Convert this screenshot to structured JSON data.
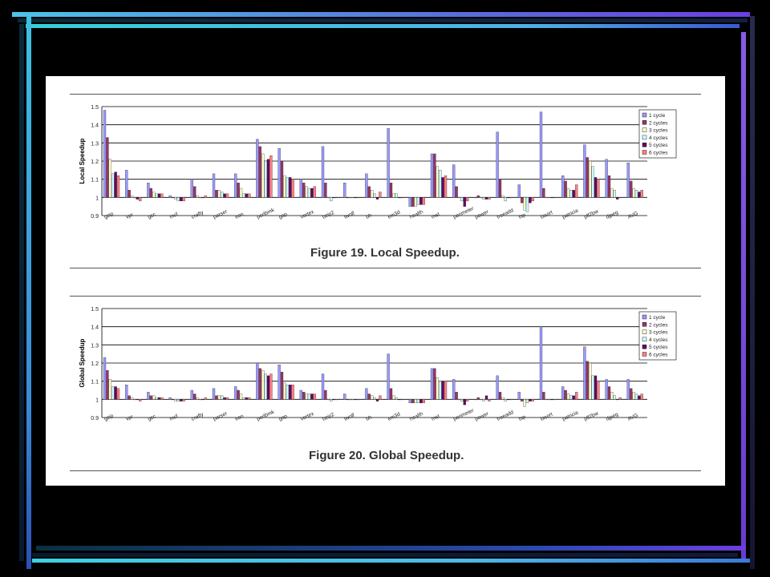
{
  "theme": {
    "background": "#000000",
    "border_light": "#4fc3e8",
    "border_mid": "#5a6fd8",
    "border_dark": "#6b3fe0",
    "series_colors": [
      "#9999ff",
      "#993366",
      "#ffffcc",
      "#ccffff",
      "#660066",
      "#ff8080"
    ],
    "bar_stroke": "#222222"
  },
  "chart_data": [
    {
      "type": "bar",
      "title": "Figure 19. Local Speedup.",
      "ylabel": "Local Speedup",
      "xlabel": "",
      "ylim": [
        0.9,
        1.5
      ],
      "yticks": [
        0.9,
        1,
        1.1,
        1.2,
        1.3,
        1.4,
        1.5
      ],
      "grid": true,
      "legend_position": "top-right",
      "categories": [
        "gzip",
        "vpr",
        "gcc",
        "mcf",
        "crafty",
        "parser",
        "eon",
        "perlbmk",
        "gap",
        "vortex",
        "bzip2",
        "twolf",
        "bh",
        "em3d",
        "health",
        "mst",
        "perimeter",
        "power",
        "treeadd",
        "tsp",
        "bisort",
        "patricia",
        "pfl2bw",
        "djpeg",
        "AVG"
      ],
      "series": [
        {
          "name": "1 cycle",
          "values": [
            1.48,
            1.15,
            1.08,
            1.01,
            1.1,
            1.13,
            1.13,
            1.32,
            1.27,
            1.1,
            1.28,
            1.08,
            1.13,
            1.38,
            0.95,
            1.24,
            1.18,
            1.0,
            1.36,
            1.07,
            1.47,
            1.12,
            1.29,
            1.21,
            1.19
          ]
        },
        {
          "name": "2 cycles",
          "values": [
            1.33,
            1.04,
            1.05,
            1.0,
            1.06,
            1.04,
            1.08,
            1.28,
            1.2,
            1.08,
            1.08,
            1.0,
            1.06,
            1.08,
            0.95,
            1.24,
            1.06,
            1.01,
            1.1,
            0.97,
            1.05,
            1.09,
            1.22,
            1.12,
            1.09
          ]
        },
        {
          "name": "3 cycles",
          "values": [
            1.21,
            1.01,
            1.03,
            0.99,
            1.01,
            1.04,
            1.05,
            1.24,
            1.12,
            1.06,
            1.0,
            1.0,
            1.04,
            1.02,
            0.95,
            1.17,
            1.0,
            1.0,
            1.01,
            0.93,
            1.0,
            1.05,
            1.2,
            1.05,
            1.05
          ]
        },
        {
          "name": "4 cycles",
          "values": [
            1.13,
            1.0,
            1.02,
            0.98,
            1.0,
            1.03,
            1.02,
            1.2,
            1.11,
            1.05,
            0.98,
            1.0,
            1.02,
            1.02,
            0.96,
            1.15,
            0.98,
            0.99,
            0.98,
            0.92,
            1.0,
            1.04,
            1.17,
            1.04,
            1.04
          ]
        },
        {
          "name": "5 cycles",
          "values": [
            1.14,
            0.99,
            1.02,
            0.98,
            1.0,
            1.02,
            1.02,
            1.21,
            1.11,
            1.05,
            1.0,
            1.0,
            0.99,
            1.0,
            0.96,
            1.11,
            0.95,
            0.99,
            1.0,
            0.97,
            1.0,
            1.04,
            1.11,
            0.99,
            1.03
          ]
        },
        {
          "name": "6 cycles",
          "values": [
            1.12,
            0.98,
            1.02,
            0.98,
            1.01,
            1.02,
            1.02,
            1.23,
            1.1,
            1.06,
            1.0,
            1.0,
            1.03,
            1.0,
            0.96,
            1.12,
            0.98,
            0.99,
            1.0,
            0.98,
            1.0,
            1.07,
            1.1,
            1.0,
            1.04
          ]
        }
      ]
    },
    {
      "type": "bar",
      "title": "Figure 20. Global Speedup.",
      "ylabel": "Global Speedup",
      "xlabel": "",
      "ylim": [
        0.9,
        1.5
      ],
      "yticks": [
        0.9,
        1,
        1.1,
        1.2,
        1.3,
        1.4,
        1.5
      ],
      "grid": true,
      "legend_position": "top-right",
      "categories": [
        "gzip",
        "vpr",
        "gcc",
        "mcf",
        "crafty",
        "parser",
        "eon",
        "perlbmk",
        "gap",
        "vortex",
        "bzip2",
        "twolf",
        "bh",
        "em3d",
        "health",
        "mst",
        "perimeter",
        "power",
        "treeadd",
        "tsp",
        "bisort",
        "patricia",
        "pfl2bw",
        "djpeg",
        "AVG"
      ],
      "series": [
        {
          "name": "1 cycle",
          "values": [
            1.23,
            1.08,
            1.04,
            1.01,
            1.05,
            1.06,
            1.07,
            1.2,
            1.19,
            1.05,
            1.14,
            1.03,
            1.06,
            1.25,
            0.98,
            1.17,
            1.11,
            1.0,
            1.13,
            1.04,
            1.4,
            1.07,
            1.29,
            1.11,
            1.11
          ]
        },
        {
          "name": "2 cycles",
          "values": [
            1.16,
            1.02,
            1.02,
            1.0,
            1.03,
            1.02,
            1.05,
            1.17,
            1.15,
            1.04,
            1.05,
            1.0,
            1.03,
            1.06,
            0.98,
            1.17,
            1.04,
            1.01,
            1.04,
            0.99,
            1.04,
            1.05,
            1.21,
            1.07,
            1.06
          ]
        },
        {
          "name": "3 cycles",
          "values": [
            1.11,
            1.01,
            1.02,
            0.99,
            1.01,
            1.02,
            1.03,
            1.16,
            1.09,
            1.03,
            1.0,
            1.0,
            1.02,
            1.02,
            0.98,
            1.12,
            1.0,
            1.0,
            1.01,
            0.96,
            1.0,
            1.03,
            1.2,
            1.04,
            1.04
          ]
        },
        {
          "name": "4 cycles",
          "values": [
            1.07,
            1.0,
            1.01,
            0.99,
            1.0,
            1.02,
            1.01,
            1.14,
            1.08,
            1.03,
            0.99,
            1.0,
            1.01,
            1.01,
            0.98,
            1.1,
            0.99,
            0.99,
            0.99,
            0.98,
            1.0,
            1.02,
            1.13,
            1.02,
            1.03
          ]
        },
        {
          "name": "5 cycles",
          "values": [
            1.07,
            1.0,
            1.01,
            0.99,
            1.0,
            1.01,
            1.01,
            1.13,
            1.08,
            1.03,
            1.0,
            1.0,
            0.99,
            1.0,
            0.98,
            1.1,
            0.97,
            1.02,
            1.0,
            0.99,
            1.0,
            1.02,
            1.13,
            1.0,
            1.02
          ]
        },
        {
          "name": "6 cycles",
          "values": [
            1.06,
            0.99,
            1.01,
            0.99,
            1.01,
            1.01,
            1.01,
            1.14,
            1.08,
            1.03,
            1.0,
            1.0,
            1.02,
            1.0,
            0.98,
            1.1,
            0.99,
            0.99,
            1.0,
            0.99,
            1.0,
            1.04,
            1.1,
            1.01,
            1.03
          ]
        }
      ]
    }
  ]
}
